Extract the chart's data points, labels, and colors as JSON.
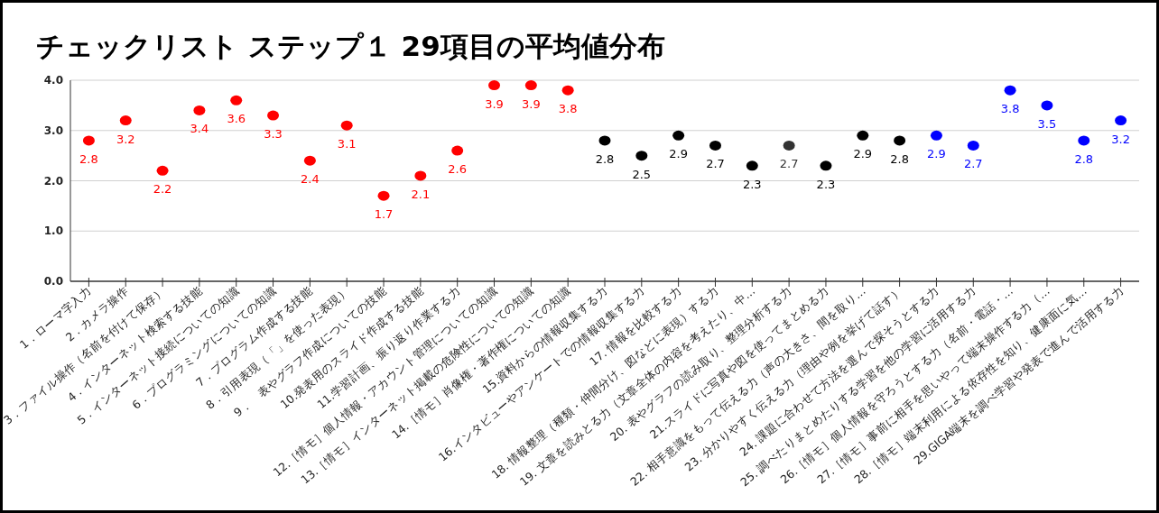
{
  "chart_data": {
    "type": "scatter",
    "title": "チェックリスト ステップ１ 29項目の平均値分布",
    "categories": [
      "1．ローマ字入力",
      "2．カメラ操作",
      "3．ファイル操作（名前を付けて保存）",
      "4．インターネット検索する技能",
      "5．インターネット接続についての知識",
      "6．プログラミングについての知識",
      "7．プログラム作成する技能",
      "8．引用表現（「」を使った表現）",
      "9．　表やグラフ作成についての技能",
      "10.発表用のスライド作成する技能",
      "11.学習計画、振り返り作業する力",
      "12.［情モ］個人情報・アカウント管理についての知識",
      "13.［情モ］インターネット掲載の危険性についての知識",
      "14.［情モ］肖像権・著作権についての知識",
      "15.資料からの情報収集する力",
      "16.インタビューやアンケートでの情報収集する力",
      "17. 情報を比較する力",
      "18. 情報整理（種類・仲間分け、図などに表現）する力",
      "19. 文章を読みとる力（文章全体の内容を考えたり、中…",
      "20. 表やグラフの読み取り、整理分析する力",
      "21.スライドに写真や図を使ってまとめる力",
      "22. 相手意識をもって伝える力（声の大きさ、間を取り…",
      "23. 分かりやすく伝える力（理由や例を挙げて話す）",
      "24. 課題に合わせて方法を選んで探そうとする力",
      "25. 調べたりまとめたりする学習を他の学習に活用する力",
      "26.［情モ］個人情報を守ろうとする力（名前・電話・…",
      "27.［情モ］事前に相手を思いやって端末操作する力（…",
      "28.［情モ］端末利用による依存性を知り、健康面に気…",
      "29.GIGA端末を調べ学習や発表で進んで活用する力"
    ],
    "values": [
      2.8,
      3.2,
      2.2,
      3.4,
      3.6,
      3.3,
      2.4,
      3.1,
      1.7,
      2.1,
      2.6,
      3.9,
      3.9,
      3.8,
      2.8,
      2.5,
      2.9,
      2.7,
      2.3,
      2.7,
      2.3,
      2.9,
      2.8,
      2.9,
      2.7,
      3.8,
      3.5,
      2.8,
      3.2
    ],
    "colors": [
      "#ff0000",
      "#ff0000",
      "#ff0000",
      "#ff0000",
      "#ff0000",
      "#ff0000",
      "#ff0000",
      "#ff0000",
      "#ff0000",
      "#ff0000",
      "#ff0000",
      "#ff0000",
      "#ff0000",
      "#ff0000",
      "#000000",
      "#000000",
      "#000000",
      "#000000",
      "#000000",
      "#333333",
      "#000000",
      "#000000",
      "#000000",
      "#0000ff",
      "#0000ff",
      "#0000ff",
      "#0000ff",
      "#0000ff",
      "#0000ff"
    ],
    "ylim": [
      0,
      4
    ],
    "yticks": [
      {
        "value": 0,
        "label": "0.0"
      },
      {
        "value": 1,
        "label": "1.0"
      },
      {
        "value": 2,
        "label": "2.0"
      },
      {
        "value": 3,
        "label": "3.0"
      },
      {
        "value": 4,
        "label": "4.0"
      }
    ],
    "grid": "y",
    "marker": "circle",
    "data_labels": true
  }
}
